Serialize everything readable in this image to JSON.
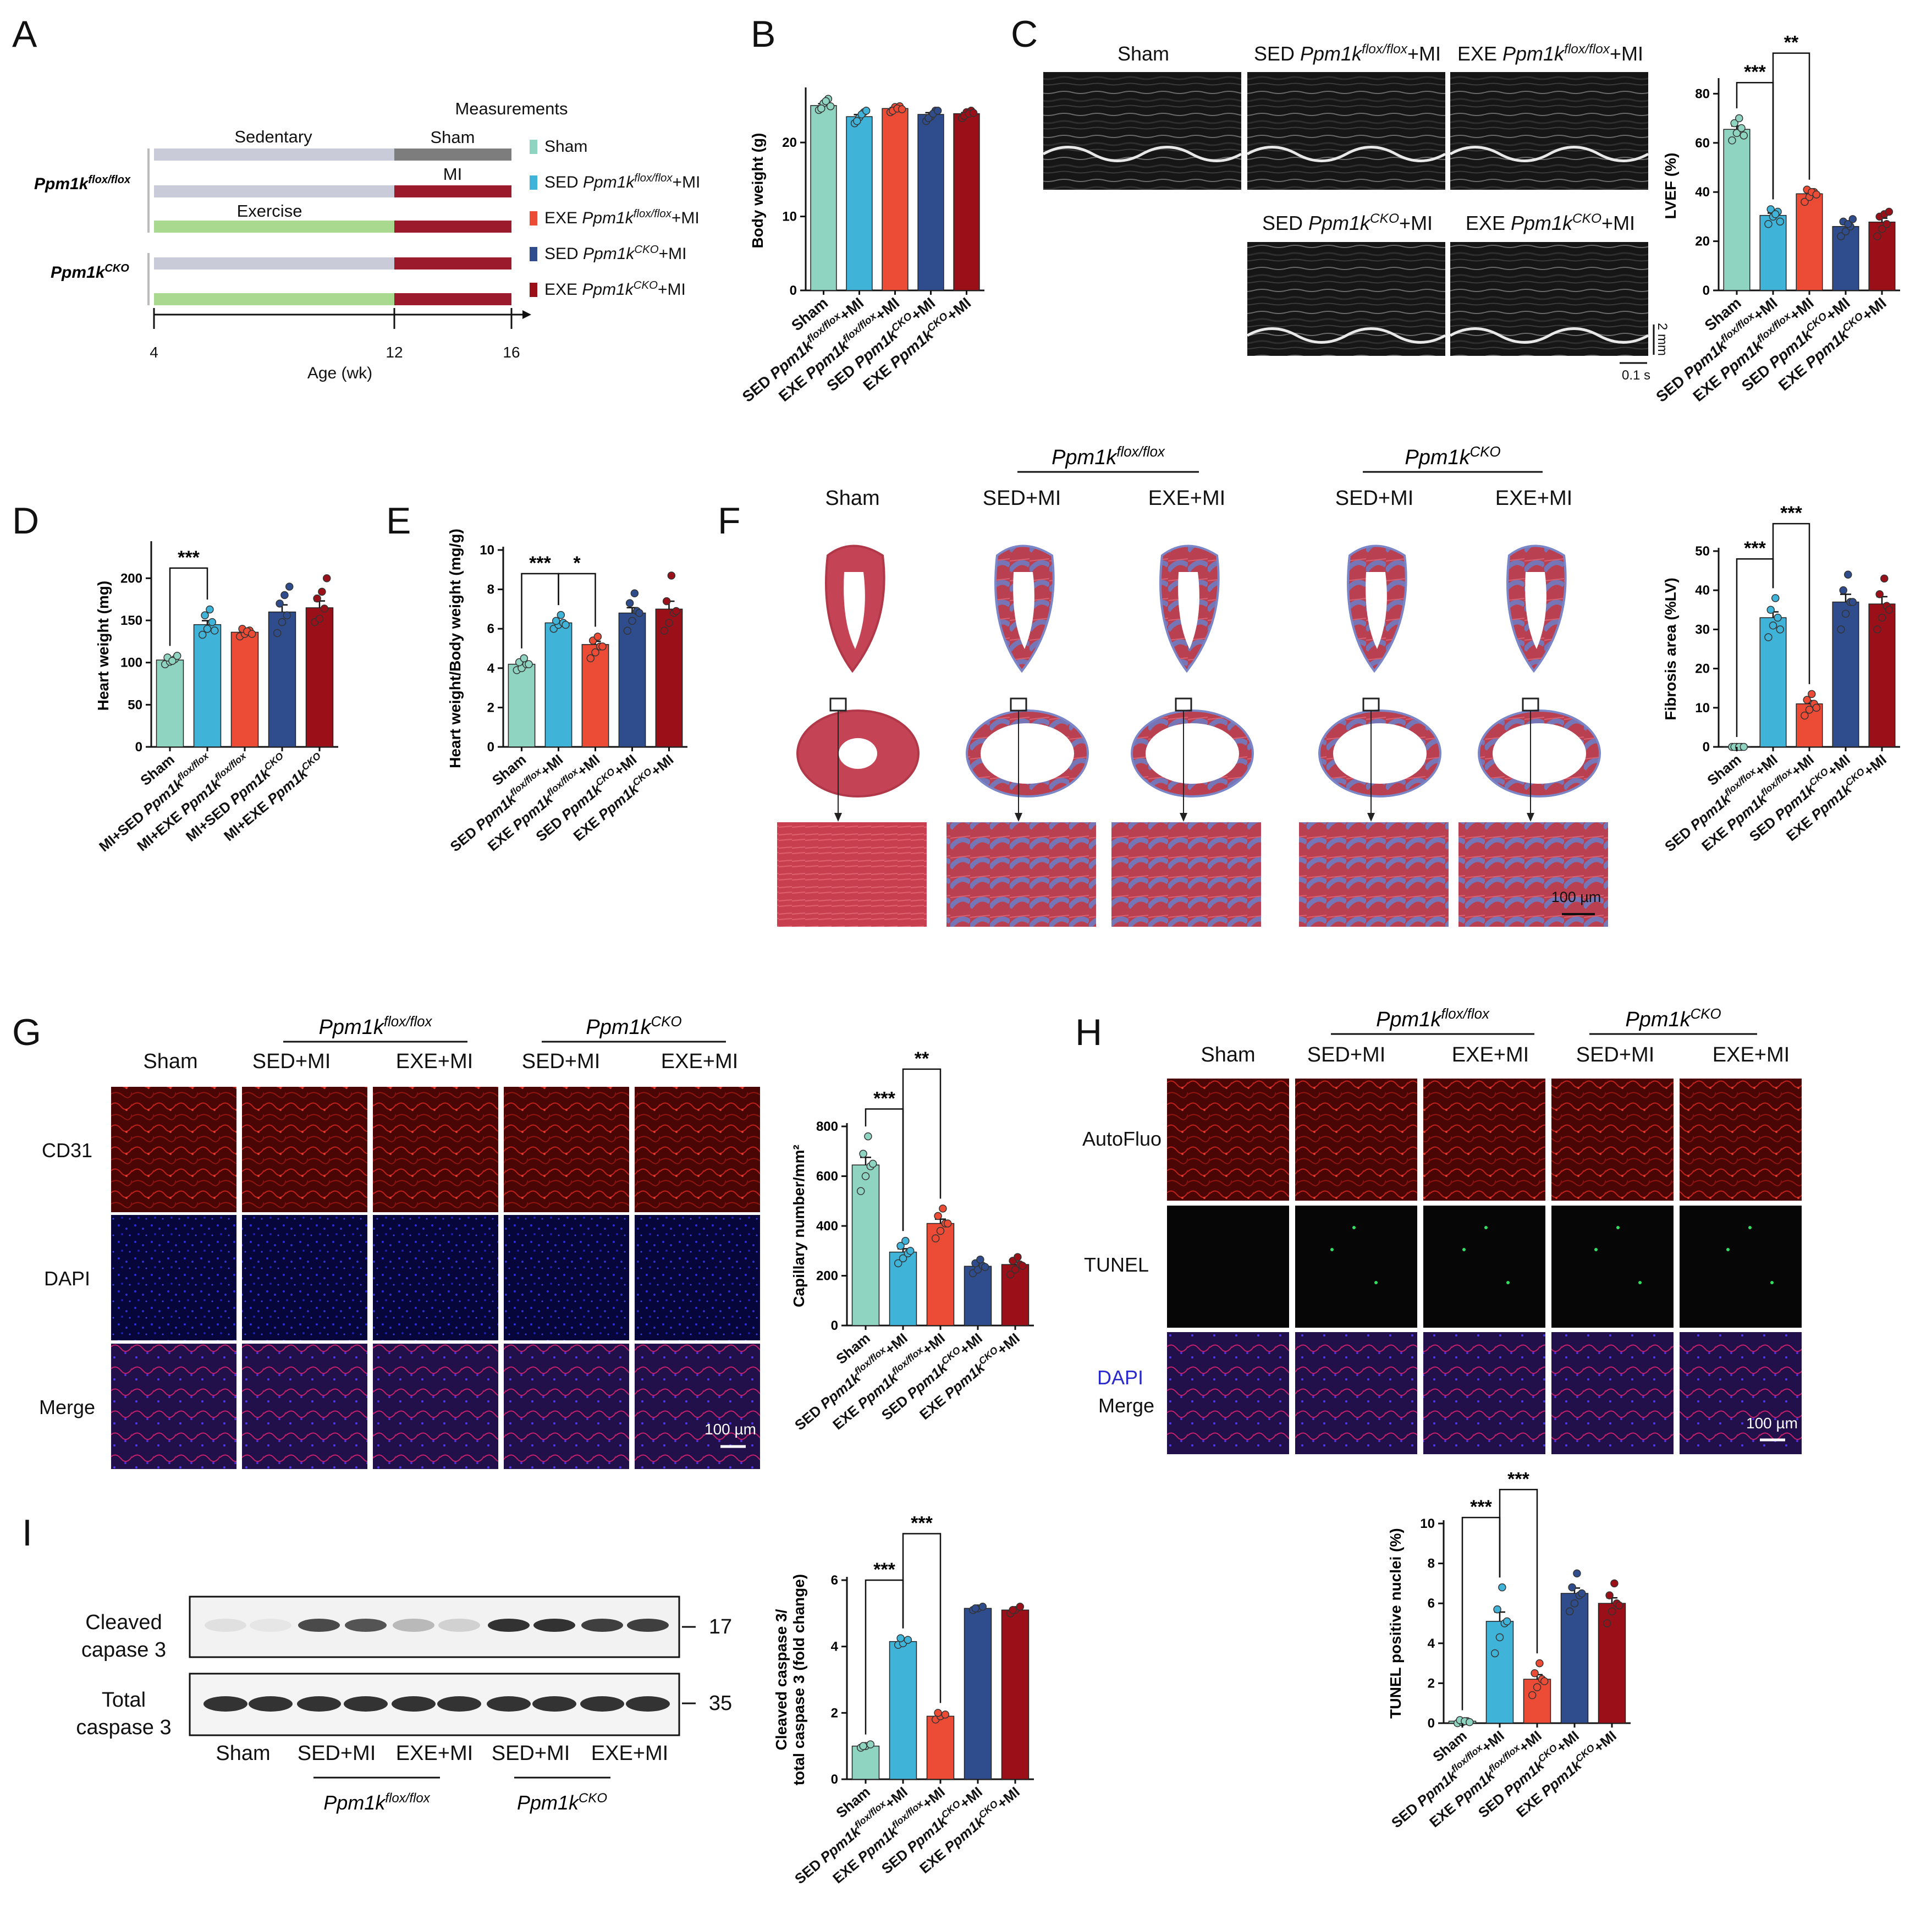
{
  "colors": {
    "sham": "#8fd4c0",
    "sed_flox": "#3fb3d8",
    "exe_flox": "#ec4b35",
    "sed_cko": "#2f4c8c",
    "exe_cko": "#9b1018",
    "sedentary_bar": "#c9cbd9",
    "exercise_bar": "#a8d98e",
    "mi_bar": "#9b1a2b",
    "sham_bar": "#7d7d7d"
  },
  "panel_letters": [
    "A",
    "B",
    "C",
    "D",
    "E",
    "F",
    "G",
    "H",
    "I"
  ],
  "panel_a": {
    "measurements": "Measurements",
    "sedentary": "Sedentary",
    "sham": "Sham",
    "mi": "MI",
    "exercise": "Exercise",
    "genotype_flox": "Ppm1k",
    "genotype_flox_sup": "flox/flox",
    "genotype_cko": "Ppm1k",
    "genotype_cko_sup": "CKO",
    "legend": [
      {
        "pre": "Sham",
        "gene": "",
        "sup": "",
        "post": ""
      },
      {
        "pre": "SED ",
        "gene": "Ppm1k",
        "sup": "flox/flox",
        "post": "+MI"
      },
      {
        "pre": "EXE ",
        "gene": "Ppm1k",
        "sup": "flox/flox",
        "post": "+MI"
      },
      {
        "pre": "SED ",
        "gene": "Ppm1k",
        "sup": "CKO",
        "post": "+MI"
      },
      {
        "pre": "EXE ",
        "gene": "Ppm1k",
        "sup": "CKO",
        "post": "+MI"
      }
    ],
    "x_ticks": [
      "4",
      "12",
      "16"
    ],
    "x_label": "Age (wk)"
  },
  "group_labels_mi": [
    {
      "pre": "Sham",
      "gene": "",
      "sup": "",
      "post": ""
    },
    {
      "pre": "SED ",
      "gene": "Ppm1k",
      "sup": "flox/flox",
      "post": "+MI"
    },
    {
      "pre": "EXE ",
      "gene": "Ppm1k",
      "sup": "flox/flox",
      "post": "+MI"
    },
    {
      "pre": "SED ",
      "gene": "Ppm1k",
      "sup": "CKO",
      "post": "+MI"
    },
    {
      "pre": "EXE ",
      "gene": "Ppm1k",
      "sup": "CKO",
      "post": "+MI"
    }
  ],
  "group_labels_d": [
    {
      "pre": "Sham",
      "gene": "",
      "sup": "",
      "post": ""
    },
    {
      "pre": "MI+SED ",
      "gene": "Ppm1k",
      "sup": "flox/flox",
      "post": ""
    },
    {
      "pre": "MI+EXE ",
      "gene": "Ppm1k",
      "sup": "flox/flox",
      "post": ""
    },
    {
      "pre": "MI+SED ",
      "gene": "Ppm1k",
      "sup": "CKO",
      "post": ""
    },
    {
      "pre": "MI+EXE ",
      "gene": "Ppm1k",
      "sup": "CKO",
      "post": ""
    }
  ],
  "panel_c": {
    "titles_top": [
      {
        "pre": "Sham",
        "gene": "",
        "sup": "",
        "post": ""
      },
      {
        "pre": "SED ",
        "gene": "Ppm1k",
        "sup": "flox/flox",
        "post": "+MI"
      },
      {
        "pre": "EXE ",
        "gene": "Ppm1k",
        "sup": "flox/flox",
        "post": "+MI"
      }
    ],
    "titles_bottom": [
      {
        "pre": "SED ",
        "gene": "Ppm1k",
        "sup": "CKO",
        "post": "+MI"
      },
      {
        "pre": "EXE ",
        "gene": "Ppm1k",
        "sup": "CKO",
        "post": "+MI"
      }
    ],
    "scale_v": "2 mm",
    "scale_h": "0.1 s"
  },
  "histology_headers": {
    "sham": "Sham",
    "sed_mi": "SED+MI",
    "exe_mi": "EXE+MI",
    "flox_gene": "Ppm1k",
    "flox_sup": "flox/flox",
    "cko_gene": "Ppm1k",
    "cko_sup": "CKO",
    "scale_100": "100 µm"
  },
  "panel_g_rows": [
    "CD31",
    "DAPI",
    "Merge"
  ],
  "panel_h_rows": [
    "AutoFluo",
    "TUNEL",
    "DAPI",
    "Merge"
  ],
  "panel_i": {
    "row1_line1": "Cleaved",
    "row1_line2": "capase 3",
    "row2_line1": "Total",
    "row2_line2": "caspase 3",
    "mw1": "17",
    "mw2": "35",
    "lanes": [
      "Sham",
      "SED+MI",
      "EXE+MI",
      "SED+MI",
      "EXE+MI"
    ]
  },
  "chart_data": [
    {
      "id": "B",
      "type": "bar",
      "ylabel": "Body weight (g)",
      "ylim": [
        0,
        27
      ],
      "yticks": [
        0,
        10,
        20
      ],
      "values": [
        25.0,
        23.5,
        24.6,
        23.8,
        23.9
      ],
      "points": [
        [
          24.4,
          25.3,
          25.9,
          24.6,
          25.6,
          24.9
        ],
        [
          22.6,
          23.4,
          24.1,
          22.9,
          23.8,
          24.3
        ],
        [
          24.1,
          24.8,
          24.9,
          24.3,
          24.6,
          24.5
        ],
        [
          22.9,
          23.5,
          24.3,
          23.3,
          23.9,
          24.3
        ],
        [
          23.3,
          24.1,
          24.3,
          23.6,
          23.9,
          24.0
        ]
      ],
      "labels": "group_labels_mi",
      "sig": []
    },
    {
      "id": "C",
      "type": "bar",
      "ylabel": "LVEF (%)",
      "ylim": [
        0,
        85
      ],
      "yticks": [
        0,
        20,
        40,
        60,
        80
      ],
      "values": [
        65.5,
        30.5,
        39.3,
        26.0,
        27.8
      ],
      "points": [
        [
          61,
          64,
          66,
          68,
          70,
          63
        ],
        [
          27,
          30,
          32,
          33,
          31,
          28
        ],
        [
          36,
          38,
          40,
          41,
          40,
          39
        ],
        [
          22,
          24,
          26,
          28,
          27,
          29
        ],
        [
          22,
          25,
          27,
          30,
          31,
          32
        ]
      ],
      "labels": "group_labels_mi",
      "sig": [
        {
          "a": 0,
          "b": 1,
          "y": 84.5,
          "text": "***"
        },
        {
          "a": 1,
          "b": 2,
          "y": 96.5,
          "text": "**"
        }
      ]
    },
    {
      "id": "D",
      "type": "bar",
      "ylabel": "Heart weight (mg)",
      "ylim": [
        0,
        240
      ],
      "yticks": [
        0,
        50,
        100,
        150,
        200
      ],
      "values": [
        103,
        145,
        136,
        160,
        165
      ],
      "points": [
        [
          98,
          101,
          104,
          106,
          102,
          108
        ],
        [
          133,
          140,
          148,
          156,
          163,
          138
        ],
        [
          131,
          134,
          138,
          140,
          137,
          134
        ],
        [
          135,
          148,
          156,
          170,
          180,
          190
        ],
        [
          148,
          152,
          164,
          176,
          184,
          200
        ]
      ],
      "labels": "group_labels_d",
      "sig": [
        {
          "a": 0,
          "b": 1,
          "y": 212,
          "text": "***"
        }
      ]
    },
    {
      "id": "E",
      "type": "bar",
      "ylabel": "Heart weight/Body weight (mg/g)",
      "ylim": [
        0,
        10
      ],
      "yticks": [
        0,
        2,
        4,
        6,
        8,
        10
      ],
      "values": [
        4.2,
        6.3,
        5.2,
        6.8,
        7.0
      ],
      "points": [
        [
          3.9,
          4.0,
          4.2,
          4.3,
          4.5,
          4.2
        ],
        [
          6.0,
          6.2,
          6.3,
          6.4,
          6.7,
          6.2
        ],
        [
          4.5,
          4.8,
          5.1,
          5.4,
          5.6,
          5.1
        ],
        [
          5.9,
          6.4,
          6.9,
          7.3,
          7.8,
          6.8
        ],
        [
          5.9,
          6.3,
          6.8,
          7.4,
          8.7,
          6.9
        ]
      ],
      "labels": "group_labels_mi",
      "sig": [
        {
          "a": 0,
          "b": 1,
          "y": 8.8,
          "text": "***"
        },
        {
          "a": 1,
          "b": 2,
          "y": 8.8,
          "text": "*"
        }
      ]
    },
    {
      "id": "F",
      "type": "bar",
      "ylabel": "Fibrosis area (%LV)",
      "ylim": [
        0,
        50
      ],
      "yticks": [
        0,
        10,
        20,
        30,
        40,
        50
      ],
      "values": [
        0,
        33.0,
        11.0,
        37.0,
        36.5
      ],
      "points": [
        [
          0,
          0,
          0,
          0,
          0,
          0
        ],
        [
          28,
          31,
          33,
          35,
          38,
          30
        ],
        [
          8,
          9.5,
          11,
          12,
          13.5,
          10
        ],
        [
          30,
          34,
          37,
          40,
          44,
          37
        ],
        [
          30,
          33,
          36,
          39,
          43,
          35
        ]
      ],
      "labels": "group_labels_mi",
      "sig": [
        {
          "a": 0,
          "b": 1,
          "y": 48,
          "text": "***"
        },
        {
          "a": 1,
          "b": 2,
          "y": 57,
          "text": "***"
        }
      ]
    },
    {
      "id": "G",
      "type": "bar",
      "ylabel": "Capillary number/mm²",
      "ylim": [
        0,
        800
      ],
      "yticks": [
        0,
        200,
        400,
        600,
        800
      ],
      "values": [
        645,
        295,
        410,
        238,
        245
      ],
      "points": [
        [
          540,
          600,
          640,
          690,
          760,
          650
        ],
        [
          250,
          270,
          290,
          320,
          340,
          300
        ],
        [
          350,
          380,
          410,
          440,
          470,
          410
        ],
        [
          210,
          225,
          240,
          250,
          265,
          235
        ],
        [
          205,
          225,
          245,
          260,
          275,
          240
        ]
      ],
      "labels": "group_labels_mi",
      "sig": [
        {
          "a": 0,
          "b": 1,
          "y": 870,
          "text": "***"
        },
        {
          "a": 1,
          "b": 2,
          "y": 1030,
          "text": "**"
        }
      ]
    },
    {
      "id": "H",
      "type": "bar",
      "ylabel": "TUNEL positive nuclei (%)",
      "ylim": [
        0,
        10
      ],
      "yticks": [
        0,
        2,
        4,
        6,
        8,
        10
      ],
      "values": [
        0.1,
        5.1,
        2.2,
        6.5,
        6.0
      ],
      "points": [
        [
          0.0,
          0.05,
          0.1,
          0.15,
          0.1,
          0.05
        ],
        [
          3.5,
          4.3,
          5.0,
          5.7,
          6.8,
          5.1
        ],
        [
          1.4,
          1.8,
          2.2,
          2.5,
          3.0,
          2.1
        ],
        [
          5.6,
          6.0,
          6.4,
          6.8,
          7.5,
          6.5
        ],
        [
          5.0,
          5.6,
          6.0,
          6.4,
          7.0,
          5.9
        ]
      ],
      "labels": "group_labels_mi",
      "sig": [
        {
          "a": 0,
          "b": 1,
          "y": 10.3,
          "text": "***"
        },
        {
          "a": 1,
          "b": 2,
          "y": 11.7,
          "text": "***"
        }
      ]
    },
    {
      "id": "I",
      "type": "bar",
      "ylabel": "Cleaved caspase 3/\ntotal caspase 3 (fold change)",
      "ylim": [
        0,
        6
      ],
      "yticks": [
        0,
        2,
        4,
        6
      ],
      "values": [
        1.0,
        4.15,
        1.9,
        5.15,
        5.1
      ],
      "points": [
        [
          0.95,
          1.0,
          1.05,
          1.0
        ],
        [
          4.05,
          4.1,
          4.2,
          4.25
        ],
        [
          1.8,
          1.9,
          1.95,
          2.0
        ],
        [
          5.1,
          5.15,
          5.2,
          5.15
        ],
        [
          5.0,
          5.1,
          5.2,
          5.1
        ]
      ],
      "labels": "group_labels_mi",
      "sig": [
        {
          "a": 0,
          "b": 1,
          "y": 6.0,
          "text": "***"
        },
        {
          "a": 1,
          "b": 2,
          "y": 7.4,
          "text": "***"
        }
      ]
    }
  ]
}
